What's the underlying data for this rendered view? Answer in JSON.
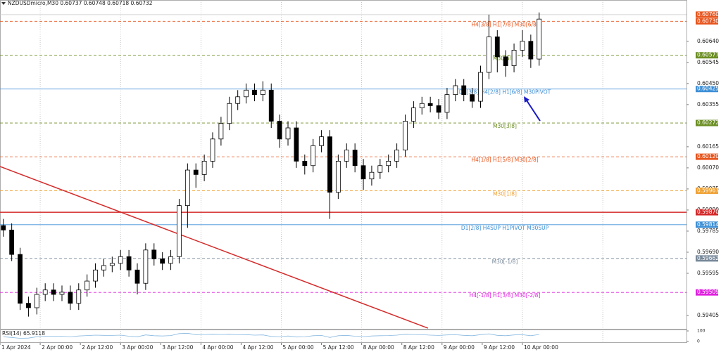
{
  "chart_data": {
    "type": "candlestick",
    "title": "NZDUSDmicro,M30  0.60737 0.60748 0.60718 0.60732",
    "up_color": "#ffffff",
    "down_color": "#000000",
    "xlim": [
      0,
      410
    ],
    "ylim": [
      0.59345,
      0.60826
    ],
    "xticks": [
      {
        "value": 0,
        "label": "1 Apr 2024"
      },
      {
        "value": 24,
        "label": "2 Apr 00:00"
      },
      {
        "value": 48,
        "label": "2 Apr 12:00"
      },
      {
        "value": 72,
        "label": "3 Apr 00:00"
      },
      {
        "value": 96,
        "label": "3 Apr 12:00"
      },
      {
        "value": 120,
        "label": "4 Apr 00:00"
      },
      {
        "value": 144,
        "label": "4 Apr 12:00"
      },
      {
        "value": 168,
        "label": "5 Apr 00:00"
      },
      {
        "value": 192,
        "label": "5 Apr 12:00"
      },
      {
        "value": 216,
        "label": "8 Apr 00:00"
      },
      {
        "value": 240,
        "label": "8 Apr 12:00"
      },
      {
        "value": 264,
        "label": "9 Apr 00:00"
      },
      {
        "value": 288,
        "label": "9 Apr 12:00"
      },
      {
        "value": 312,
        "label": "10 Apr 00:00"
      }
    ],
    "xgrid": [
      24,
      72,
      120,
      168,
      216,
      264,
      312,
      360
    ],
    "yticks": [
      {
        "value": 0.6064,
        "label": "0.60640"
      },
      {
        "value": 0.60545,
        "label": "0.60545"
      },
      {
        "value": 0.6045,
        "label": "0.60450"
      },
      {
        "value": 0.60355,
        "label": "0.60355"
      },
      {
        "value": 0.60165,
        "label": "0.60165"
      },
      {
        "value": 0.6007,
        "label": "0.60070"
      },
      {
        "value": 0.59975,
        "label": "0.59975"
      },
      {
        "value": 0.5988,
        "label": "0.59880"
      },
      {
        "value": 0.59785,
        "label": "0.59785"
      },
      {
        "value": 0.5969,
        "label": "0.59690"
      },
      {
        "value": 0.59595,
        "label": "0.59595"
      },
      {
        "value": 0.59405,
        "label": "0.59405"
      }
    ],
    "levels": [
      {
        "price": 0.6076,
        "price_label": "0.60760",
        "color": "#c8c8c8",
        "label_bg": "#e8541c",
        "style": "solid"
      },
      {
        "price": 0.6073,
        "price_label": "0.60730",
        "label": "H4[3/8] H1[7/8] M30[6/8]",
        "color": "#e8541c",
        "label_bg": "#e8541c",
        "style": "dashed"
      },
      {
        "price": 0.60577,
        "price_label": "0.60577",
        "label": "M30[5/8]",
        "color": "#6b8e23",
        "label_bg": "#6b8e23",
        "style": "dashed"
      },
      {
        "price": 0.60425,
        "price_label": "0.60425",
        "label": "D1[3/8] H4[2/8] H1[6/8] M30PIVOT",
        "color": "#3d8fd6",
        "label_bg": "#3d8fd6",
        "style": "solid"
      },
      {
        "price": 0.60272,
        "price_label": "0.60272",
        "label": "M30[3/8]",
        "color": "#6b8e23",
        "label_bg": "#6b8e23",
        "style": "dashed"
      },
      {
        "price": 0.6012,
        "price_label": "0.60120",
        "label": "H4[1/8] H1[5/8] M30[2/8]",
        "color": "#e8541c",
        "label_bg": "#e8541c",
        "style": "dashed"
      },
      {
        "price": 0.59967,
        "price_label": "0.59967",
        "label": "M30[1/8]",
        "color": "#f0a030",
        "label_bg": "#f0a030",
        "style": "dashed"
      },
      {
        "price": 0.5987,
        "price_label": "0.59870",
        "color": "#d42a2a",
        "label_bg": "#d42a2a",
        "style": "solid"
      },
      {
        "price": 0.59814,
        "price_label": "0.59814",
        "label": "D1[2/8] H4SUP H1PIVOT M30SUP",
        "color": "#3d8fd6",
        "label_bg": "#3d8fd6",
        "style": "solid"
      },
      {
        "price": 0.59662,
        "price_label": "0.59662",
        "label": "M30[-1/8]",
        "color": "#778899",
        "label_bg": "#778899",
        "style": "dashed"
      },
      {
        "price": 0.59509,
        "price_label": "0.59509",
        "label": "H4[-1/8] H1[3/8] M30[-2/8]",
        "color": "#e020e0",
        "label_bg": "#e020e0",
        "style": "dashed"
      }
    ],
    "trendline": {
      "x": [
        0,
        255.6
      ],
      "y": [
        0.60076,
        0.59348
      ],
      "color": "#d42a2a"
    },
    "x": [
      2,
      7,
      12,
      17,
      22,
      27,
      32,
      37,
      42,
      47,
      52,
      57,
      62,
      67,
      72,
      77,
      82,
      87,
      92,
      97,
      102,
      107,
      112,
      117,
      122,
      127,
      132,
      137,
      142,
      147,
      152,
      157,
      162,
      167,
      172,
      177,
      182,
      187,
      192,
      197,
      202,
      207,
      212,
      217,
      222,
      227,
      232,
      237,
      242,
      247,
      252,
      257,
      262,
      267,
      272,
      277,
      282,
      287,
      292,
      297,
      302,
      307,
      312,
      317,
      322
    ],
    "ohlc": [
      [
        0.5981,
        0.5984,
        0.5976,
        0.5979
      ],
      [
        0.5979,
        0.5982,
        0.5965,
        0.5968
      ],
      [
        0.5968,
        0.5971,
        0.5943,
        0.5946
      ],
      [
        0.5946,
        0.5949,
        0.594,
        0.5944
      ],
      [
        0.5944,
        0.5953,
        0.5941,
        0.595
      ],
      [
        0.595,
        0.5955,
        0.5947,
        0.5952
      ],
      [
        0.5952,
        0.5955,
        0.5947,
        0.595
      ],
      [
        0.595,
        0.5954,
        0.5947,
        0.5951
      ],
      [
        0.5951,
        0.5954,
        0.5943,
        0.5946
      ],
      [
        0.5946,
        0.5955,
        0.5943,
        0.5952
      ],
      [
        0.5952,
        0.5959,
        0.5949,
        0.5956
      ],
      [
        0.5956,
        0.5964,
        0.5953,
        0.5961
      ],
      [
        0.5961,
        0.5966,
        0.5958,
        0.5963
      ],
      [
        0.5963,
        0.5967,
        0.596,
        0.5964
      ],
      [
        0.5964,
        0.597,
        0.5961,
        0.5967
      ],
      [
        0.5967,
        0.597,
        0.5958,
        0.5961
      ],
      [
        0.5961,
        0.5964,
        0.595,
        0.5955
      ],
      [
        0.5955,
        0.5973,
        0.5952,
        0.597
      ],
      [
        0.597,
        0.5973,
        0.5963,
        0.5966
      ],
      [
        0.5966,
        0.5969,
        0.5961,
        0.5964
      ],
      [
        0.5964,
        0.597,
        0.5961,
        0.5967
      ],
      [
        0.5967,
        0.5993,
        0.5964,
        0.599
      ],
      [
        0.599,
        0.6009,
        0.598,
        0.6006
      ],
      [
        0.6006,
        0.6009,
        0.5998,
        0.6004
      ],
      [
        0.6004,
        0.6013,
        0.6001,
        0.601
      ],
      [
        0.601,
        0.6023,
        0.6007,
        0.602
      ],
      [
        0.602,
        0.603,
        0.6017,
        0.6027
      ],
      [
        0.6027,
        0.6039,
        0.6024,
        0.6036
      ],
      [
        0.6036,
        0.6042,
        0.6033,
        0.6039
      ],
      [
        0.6039,
        0.6045,
        0.6036,
        0.6042
      ],
      [
        0.6042,
        0.6045,
        0.6037,
        0.604
      ],
      [
        0.604,
        0.6046,
        0.6037,
        0.6042
      ],
      [
        0.6042,
        0.6045,
        0.6025,
        0.6028
      ],
      [
        0.6028,
        0.6031,
        0.6016,
        0.602
      ],
      [
        0.602,
        0.6028,
        0.6017,
        0.6025
      ],
      [
        0.6025,
        0.6028,
        0.6007,
        0.601
      ],
      [
        0.601,
        0.6013,
        0.6004,
        0.6008
      ],
      [
        0.6008,
        0.602,
        0.6005,
        0.6017
      ],
      [
        0.6017,
        0.6024,
        0.6014,
        0.6021
      ],
      [
        0.6021,
        0.6024,
        0.5984,
        0.5996
      ],
      [
        0.5996,
        0.6013,
        0.5993,
        0.601
      ],
      [
        0.601,
        0.6018,
        0.6007,
        0.6015
      ],
      [
        0.6015,
        0.6018,
        0.6005,
        0.6008
      ],
      [
        0.6008,
        0.6011,
        0.5997,
        0.6002
      ],
      [
        0.6002,
        0.6008,
        0.5999,
        0.6005
      ],
      [
        0.6005,
        0.6011,
        0.6002,
        0.6008
      ],
      [
        0.6008,
        0.6013,
        0.6005,
        0.601
      ],
      [
        0.601,
        0.6018,
        0.6007,
        0.6015
      ],
      [
        0.6015,
        0.6031,
        0.6012,
        0.6028
      ],
      [
        0.6028,
        0.6037,
        0.6025,
        0.6034
      ],
      [
        0.6034,
        0.6039,
        0.6031,
        0.6036
      ],
      [
        0.6036,
        0.6039,
        0.6032,
        0.6035
      ],
      [
        0.6035,
        0.6038,
        0.6029,
        0.6032
      ],
      [
        0.6032,
        0.6043,
        0.6029,
        0.604
      ],
      [
        0.604,
        0.6047,
        0.6037,
        0.6044
      ],
      [
        0.6044,
        0.6047,
        0.6037,
        0.604
      ],
      [
        0.604,
        0.6043,
        0.6034,
        0.6037
      ],
      [
        0.6037,
        0.6053,
        0.6034,
        0.605
      ],
      [
        0.605,
        0.6076,
        0.6047,
        0.6066
      ],
      [
        0.6066,
        0.6069,
        0.605,
        0.6057
      ],
      [
        0.6057,
        0.606,
        0.6048,
        0.6053
      ],
      [
        0.6053,
        0.6063,
        0.605,
        0.606
      ],
      [
        0.606,
        0.6069,
        0.6057,
        0.6064
      ],
      [
        0.6064,
        0.6067,
        0.6052,
        0.6056
      ],
      [
        0.6056,
        0.6077,
        0.6053,
        0.6074
      ]
    ],
    "rsi": {
      "label": "RSI(14) 65.9118",
      "ylim": [
        0,
        100
      ],
      "yticks": [
        100,
        0
      ],
      "color": "#87b8e0",
      "values": [
        45,
        38,
        30,
        32,
        45,
        50,
        48,
        50,
        44,
        52,
        56,
        60,
        58,
        57,
        60,
        50,
        45,
        62,
        55,
        52,
        56,
        75,
        78,
        65,
        66,
        68,
        66,
        68,
        64,
        65,
        60,
        62,
        48,
        44,
        52,
        42,
        44,
        55,
        57,
        38,
        55,
        58,
        50,
        46,
        52,
        55,
        56,
        60,
        68,
        66,
        64,
        60,
        57,
        62,
        64,
        58,
        55,
        65,
        72,
        58,
        55,
        62,
        64,
        55,
        66
      ]
    }
  }
}
